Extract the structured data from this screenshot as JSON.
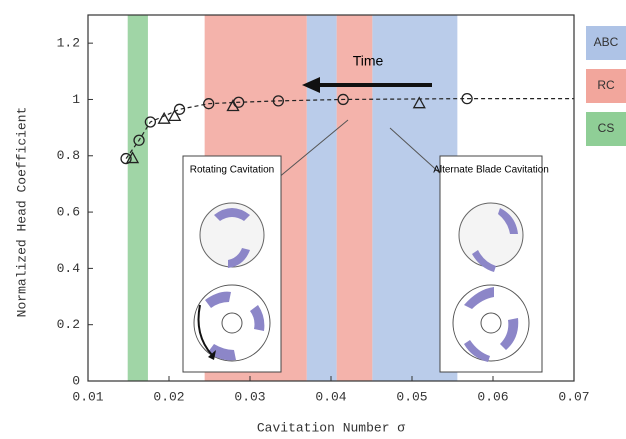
{
  "chart_data": {
    "type": "scatter",
    "xlabel": "Cavitation Number σ",
    "ylabel": "Normalized Head Coefficient",
    "xlim": [
      0.01,
      0.07
    ],
    "ylim": [
      0,
      1.3
    ],
    "xticks": [
      0.01,
      0.02,
      0.03,
      0.04,
      0.05,
      0.06,
      0.07
    ],
    "yticks": [
      0,
      0.2,
      0.4,
      0.6,
      0.8,
      1,
      1.2
    ],
    "regions": [
      {
        "label": "ABC",
        "color": "#aec3e6",
        "spans": [
          [
            0.037,
            0.0407
          ],
          [
            0.0451,
            0.0556
          ]
        ]
      },
      {
        "label": "RC",
        "color": "#f2a69c",
        "spans": [
          [
            0.0244,
            0.037
          ],
          [
            0.0407,
            0.0451
          ]
        ]
      },
      {
        "label": "CS",
        "color": "#8fce96",
        "spans": [
          [
            0.0149,
            0.0174
          ]
        ]
      }
    ],
    "series": [
      {
        "marker": "circle",
        "line": "dashed",
        "color": "#222",
        "x": [
          0.0147,
          0.0163,
          0.0177,
          0.0213,
          0.0249,
          0.0286,
          0.0335,
          0.0415,
          0.0568
        ],
        "values": [
          0.79,
          0.855,
          0.92,
          0.965,
          0.985,
          0.99,
          0.995,
          1.0,
          1.003
        ]
      },
      {
        "marker": "triangle",
        "color": "#222",
        "x": [
          0.0155,
          0.0194,
          0.0207,
          0.0279,
          0.0509
        ],
        "values": [
          0.79,
          0.93,
          0.94,
          0.975,
          0.985
        ]
      }
    ],
    "annotations": [
      "Time",
      "Rotating Cavitation",
      "Alternate Blade Cavitation"
    ]
  }
}
